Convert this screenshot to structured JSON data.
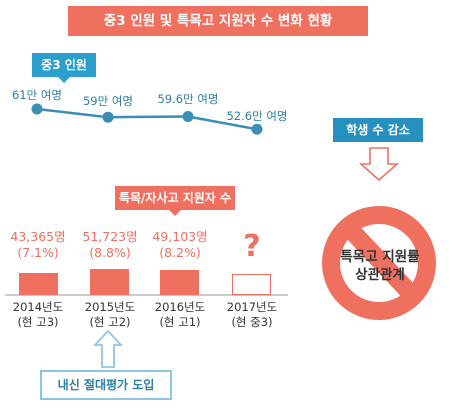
{
  "title": "중3 인원 및 특목고 지원자 수 변화 현황",
  "colors": {
    "coral": "#f07060",
    "blue": "#2d9fcf",
    "line": "#3a8fb7",
    "light_blue": "#8ec6e2"
  },
  "chart_data": [
    {
      "type": "line",
      "title": "중3 인원",
      "categories": [
        "2014년도",
        "2015년도",
        "2016년도",
        "2017년도"
      ],
      "values": [
        61,
        59,
        59.6,
        52.6
      ],
      "value_labels": [
        "61만 여명",
        "59만 여명",
        "59.6만 여명",
        "52.6만 여명"
      ]
    },
    {
      "type": "bar",
      "title": "특목/자사고 지원자 수",
      "categories": [
        "2014년도",
        "2015년도",
        "2016년도",
        "2017년도"
      ],
      "category_notes": [
        "(현 고3)",
        "(현 고2)",
        "(현 고1)",
        "(현 중3)"
      ],
      "values": [
        43365,
        51723,
        49103,
        null
      ],
      "value_labels": [
        "43,365명",
        "51,723명",
        "49,103명",
        "?"
      ],
      "percent_labels": [
        "(7.1%)",
        "(8.8%)",
        "(8.2%)",
        ""
      ]
    }
  ],
  "annotations": {
    "policy": "내신 절대평가 도입",
    "decline_tag": "학생 수 감소",
    "no_sign_text": "특목고 지원률 상관관계"
  }
}
